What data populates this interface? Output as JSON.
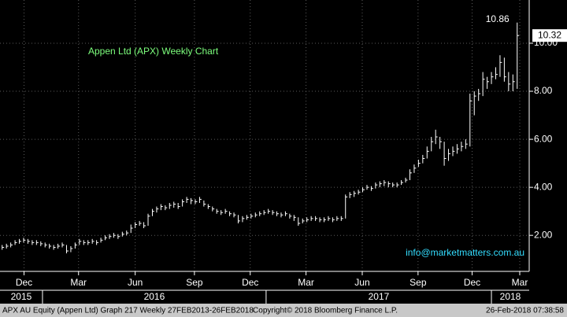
{
  "chart_data": {
    "type": "ohlc",
    "title": "Appen Ltd (APX) Weekly Chart",
    "watermark": "info@marketmatters.com.au",
    "color": "#ffffff",
    "title_color": "#7dff7d",
    "watermark_color": "#33ddff",
    "grid": true,
    "y_axis_side": "right",
    "high": [
      1.6,
      1.65,
      1.7,
      1.8,
      1.85,
      1.9,
      1.85,
      1.8,
      1.8,
      1.75,
      1.7,
      1.65,
      1.6,
      1.65,
      1.7,
      1.6,
      1.55,
      1.7,
      1.85,
      1.8,
      1.8,
      1.85,
      1.8,
      1.9,
      2.0,
      2.05,
      2.1,
      2.05,
      2.15,
      2.2,
      2.45,
      2.55,
      2.6,
      2.55,
      2.9,
      3.1,
      3.2,
      3.3,
      3.25,
      3.35,
      3.4,
      3.35,
      3.5,
      3.6,
      3.55,
      3.5,
      3.6,
      3.45,
      3.3,
      3.2,
      3.1,
      3.05,
      3.1,
      3.0,
      2.95,
      2.85,
      2.8,
      2.85,
      2.9,
      2.95,
      3.0,
      3.05,
      3.1,
      3.05,
      3.0,
      2.95,
      3.0,
      2.9,
      2.85,
      2.75,
      2.7,
      2.75,
      2.8,
      2.8,
      2.75,
      2.75,
      2.8,
      2.75,
      2.8,
      2.8,
      3.7,
      3.8,
      3.85,
      3.9,
      4.0,
      4.1,
      4.05,
      4.2,
      4.25,
      4.3,
      4.25,
      4.2,
      4.2,
      4.3,
      4.4,
      4.75,
      4.95,
      5.15,
      5.35,
      5.7,
      6.1,
      6.4,
      6.1,
      5.9,
      5.6,
      5.7,
      5.8,
      5.9,
      6.0,
      7.9,
      8.0,
      8.1,
      8.8,
      8.6,
      8.8,
      9.0,
      9.5,
      9.4,
      8.8,
      8.7,
      10.86
    ],
    "low": [
      1.4,
      1.45,
      1.5,
      1.6,
      1.65,
      1.7,
      1.65,
      1.6,
      1.6,
      1.55,
      1.5,
      1.45,
      1.4,
      1.45,
      1.5,
      1.25,
      1.3,
      1.45,
      1.6,
      1.6,
      1.6,
      1.65,
      1.6,
      1.7,
      1.8,
      1.85,
      1.9,
      1.85,
      1.95,
      2.0,
      2.1,
      2.3,
      2.4,
      2.3,
      2.4,
      2.8,
      2.95,
      3.05,
      3.05,
      3.1,
      3.15,
      3.1,
      3.2,
      3.35,
      3.3,
      3.3,
      3.35,
      3.2,
      3.1,
      3.0,
      2.9,
      2.85,
      2.9,
      2.8,
      2.75,
      2.5,
      2.55,
      2.65,
      2.7,
      2.75,
      2.8,
      2.85,
      2.9,
      2.85,
      2.8,
      2.75,
      2.8,
      2.7,
      2.6,
      2.4,
      2.5,
      2.55,
      2.6,
      2.6,
      2.55,
      2.55,
      2.6,
      2.55,
      2.6,
      2.6,
      2.7,
      3.55,
      3.6,
      3.7,
      3.8,
      3.9,
      3.85,
      3.95,
      4.0,
      4.05,
      4.0,
      4.0,
      4.0,
      4.1,
      4.2,
      4.3,
      4.6,
      4.85,
      5.0,
      5.2,
      5.5,
      5.8,
      5.6,
      4.9,
      5.1,
      5.3,
      5.4,
      5.5,
      5.6,
      5.7,
      7.0,
      7.6,
      7.8,
      8.1,
      8.3,
      8.5,
      8.6,
      8.4,
      8.0,
      8.0,
      8.1
    ],
    "close": [
      1.5,
      1.55,
      1.6,
      1.7,
      1.75,
      1.8,
      1.75,
      1.7,
      1.7,
      1.65,
      1.6,
      1.55,
      1.5,
      1.55,
      1.6,
      1.35,
      1.45,
      1.6,
      1.75,
      1.7,
      1.7,
      1.75,
      1.7,
      1.8,
      1.9,
      1.95,
      2.0,
      1.95,
      2.05,
      2.1,
      2.3,
      2.45,
      2.5,
      2.4,
      2.8,
      3.0,
      3.1,
      3.2,
      3.15,
      3.25,
      3.3,
      3.2,
      3.4,
      3.5,
      3.45,
      3.4,
      3.5,
      3.3,
      3.2,
      3.1,
      3.0,
      2.95,
      3.0,
      2.9,
      2.85,
      2.6,
      2.7,
      2.75,
      2.8,
      2.85,
      2.9,
      2.95,
      3.0,
      2.95,
      2.9,
      2.85,
      2.9,
      2.8,
      2.75,
      2.5,
      2.6,
      2.65,
      2.7,
      2.7,
      2.65,
      2.65,
      2.7,
      2.65,
      2.7,
      2.7,
      3.6,
      3.7,
      3.75,
      3.8,
      3.9,
      4.0,
      3.95,
      4.1,
      4.15,
      4.2,
      4.15,
      4.1,
      4.1,
      4.2,
      4.3,
      4.6,
      4.8,
      5.0,
      5.2,
      5.5,
      5.9,
      6.1,
      5.9,
      5.2,
      5.4,
      5.5,
      5.6,
      5.7,
      5.8,
      7.6,
      7.8,
      7.9,
      8.5,
      8.4,
      8.6,
      8.7,
      9.2,
      8.6,
      8.3,
      8.4,
      10.32
    ],
    "xlim": [
      -0.5,
      122.8
    ],
    "xticks": [
      {
        "value": 5.1,
        "label": "Dec"
      },
      {
        "value": 17.8,
        "label": "Mar"
      },
      {
        "value": 31.0,
        "label": "Jun"
      },
      {
        "value": 44.8,
        "label": "Sep"
      },
      {
        "value": 57.8,
        "label": "Dec"
      },
      {
        "value": 70.8,
        "label": "Mar"
      },
      {
        "value": 83.9,
        "label": "Jun"
      },
      {
        "value": 96.9,
        "label": "Sep"
      },
      {
        "value": 109.5,
        "label": "Dec"
      },
      {
        "value": 120.6,
        "label": "Mar"
      }
    ],
    "years": [
      {
        "value": -0.5,
        "label": "2015"
      },
      {
        "value": 9.4,
        "label": "2016"
      },
      {
        "value": 61.5,
        "label": "2017"
      },
      {
        "value": 114,
        "label": "2018"
      }
    ],
    "ylim": [
      0.5,
      11.8
    ],
    "yticks": [
      {
        "value": 2,
        "label": "2.00"
      },
      {
        "value": 4,
        "label": "4.00"
      },
      {
        "value": 6,
        "label": "6.00"
      },
      {
        "value": 8,
        "label": "8.00"
      },
      {
        "value": 10,
        "label": "10.00"
      }
    ],
    "footer": [
      "APX AU Equity (Appen Ltd) Graph 217  Weekly 27FEB2013-26FEB2018",
      "Copyright© 2018 Bloomberg Finance L.P.",
      "26-Feb-2018 07:38:58"
    ]
  }
}
